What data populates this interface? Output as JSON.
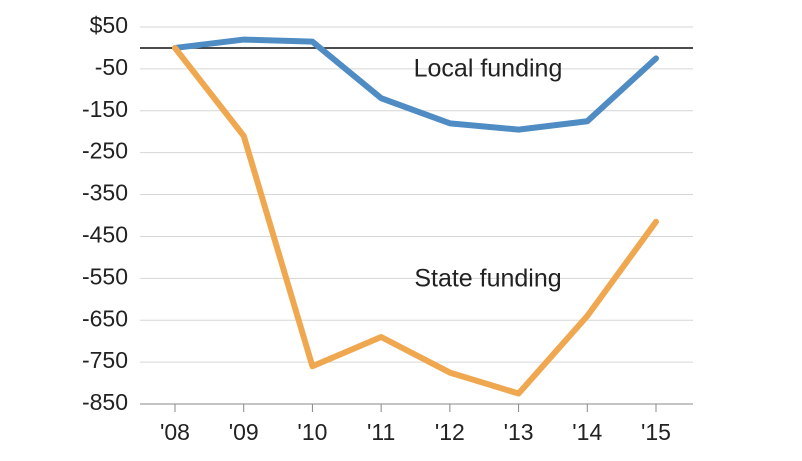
{
  "chart_data": {
    "type": "line",
    "categories": [
      "'08",
      "'09",
      "'10",
      "'11",
      "'12",
      "'13",
      "'14",
      "'15"
    ],
    "series": [
      {
        "name": "Local funding",
        "color": "#4f8cc4",
        "values": [
          0,
          20,
          15,
          -120,
          -180,
          -195,
          -175,
          -25
        ]
      },
      {
        "name": "State funding",
        "color": "#f0a850",
        "values": [
          0,
          -210,
          -760,
          -690,
          -775,
          -825,
          -640,
          -415
        ]
      }
    ],
    "ylim": [
      -850,
      50
    ],
    "yticks": [
      {
        "value": 50,
        "label": "$50"
      },
      -50,
      -150,
      -250,
      -350,
      -450,
      -550,
      -650,
      -750,
      -850
    ],
    "grid": true
  }
}
